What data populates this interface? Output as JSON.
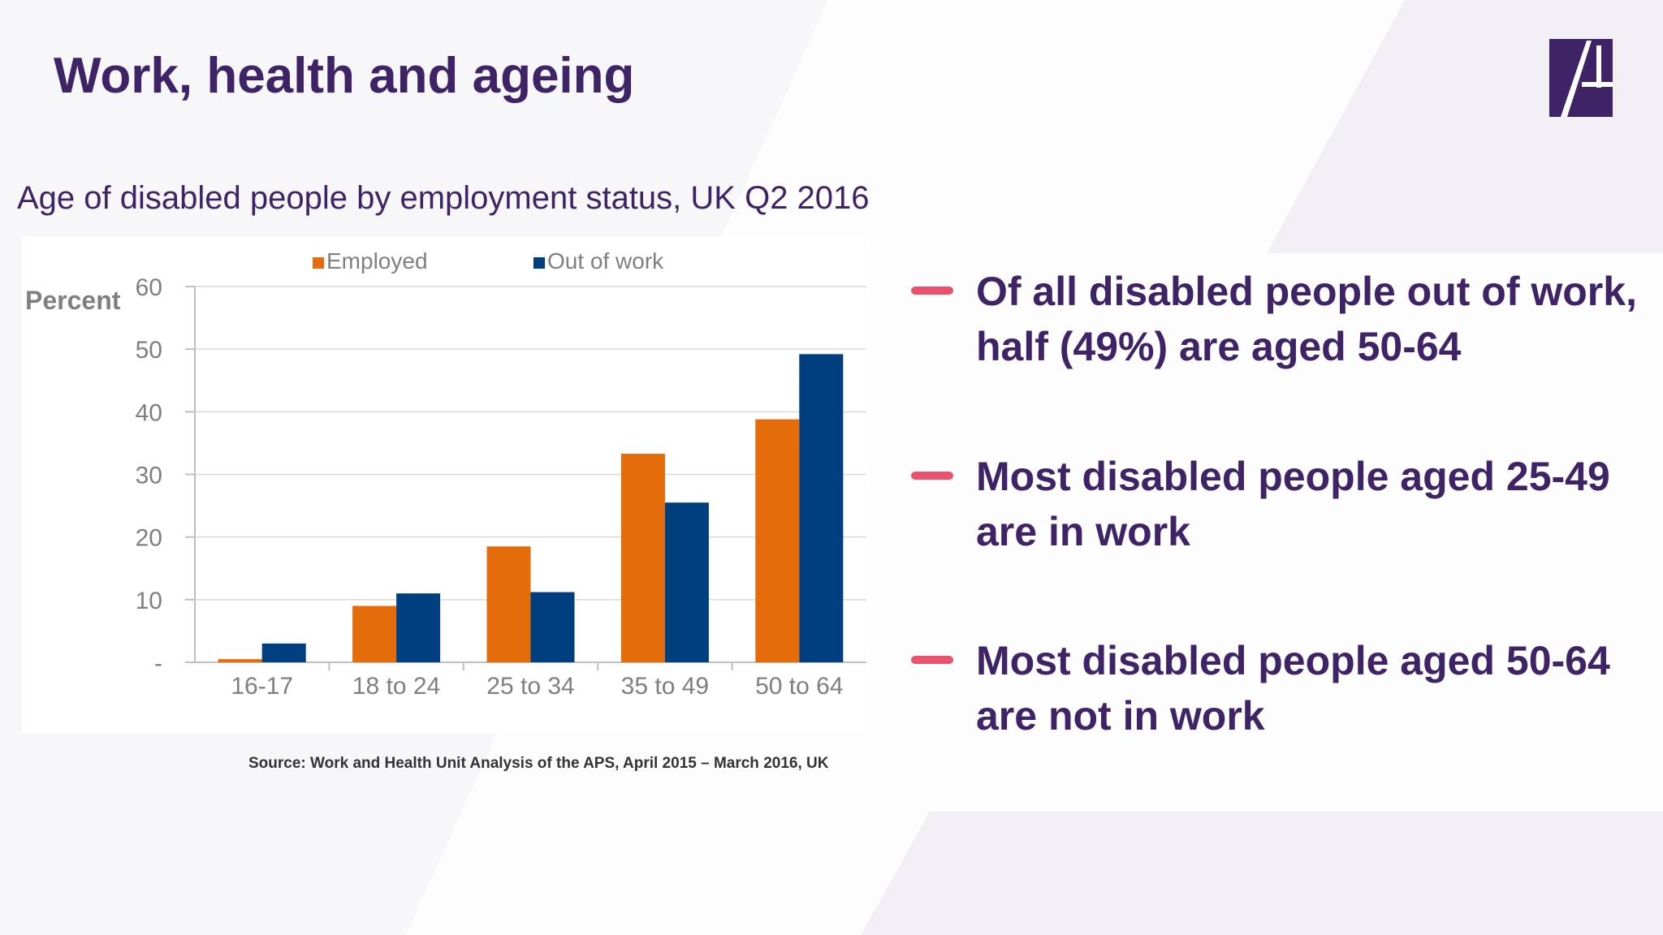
{
  "slide": {
    "title": "Work, health and ageing"
  },
  "colors": {
    "title": "#3e2466",
    "accent_dash": "#e8526d",
    "employed": "#e46c0a",
    "out_of_work": "#003f7f",
    "logo": "#3e2466"
  },
  "chart_data": {
    "type": "bar",
    "title": "Age of disabled people by employment status, UK Q2 2016",
    "ylabel": "Percent",
    "xlabel": "",
    "categories": [
      "16-17",
      "18 to 24",
      "25 to 34",
      "35 to 49",
      "50 to 64"
    ],
    "series": [
      {
        "name": "Employed",
        "values": [
          0.5,
          9,
          18.5,
          33.3,
          38.8
        ]
      },
      {
        "name": "Out of work",
        "values": [
          3,
          11,
          11.2,
          25.5,
          49.2
        ]
      }
    ],
    "ylim": [
      0,
      60
    ],
    "yticks": [
      0,
      10,
      20,
      30,
      40,
      50,
      60
    ],
    "ytick_labels": [
      "-",
      "10",
      "20",
      "30",
      "40",
      "50",
      "60"
    ],
    "grid": true,
    "legend": "top"
  },
  "source": "Source: Work and Health Unit Analysis of the APS, April 2015 – March 2016, UK",
  "bullets": [
    {
      "text": "Of all disabled people out of work, half (49%) are aged 50-64"
    },
    {
      "text": "Most disabled people aged 25-49 are in work"
    },
    {
      "text": "Most disabled people aged 50-64 are not in work"
    }
  ]
}
